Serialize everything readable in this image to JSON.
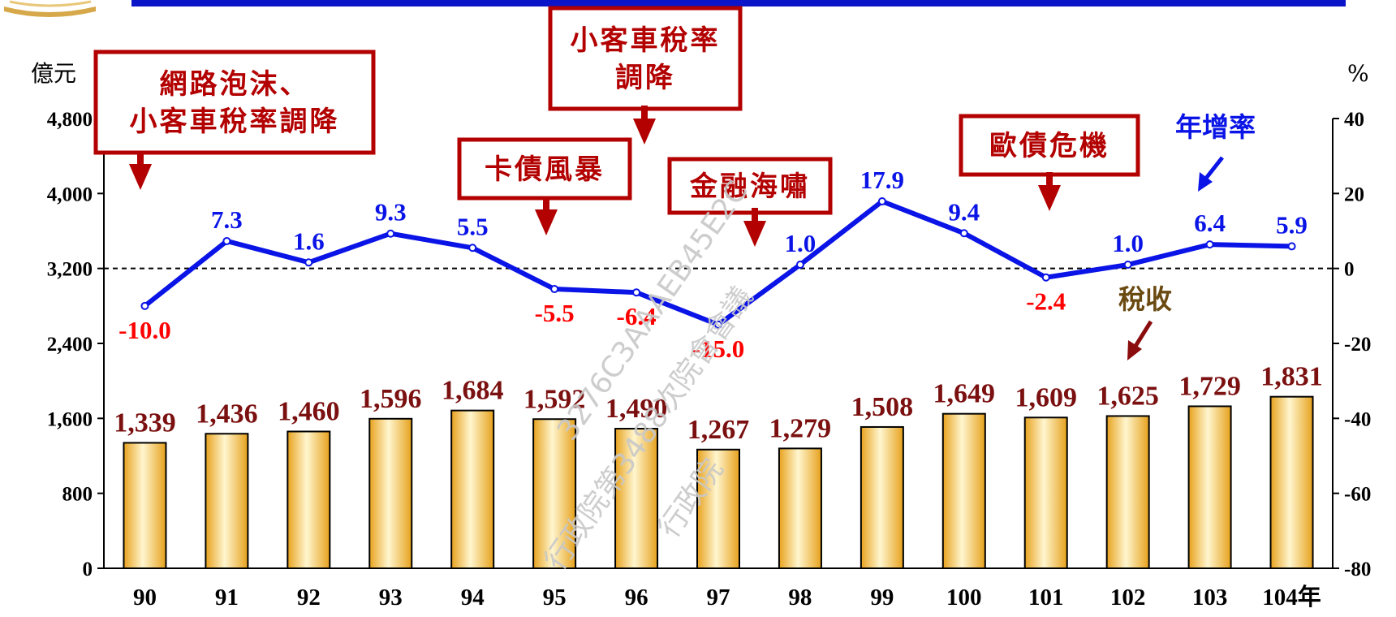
{
  "chart_data": {
    "type": "bar+line",
    "categories": [
      "90",
      "91",
      "92",
      "93",
      "94",
      "95",
      "96",
      "97",
      "98",
      "99",
      "100",
      "101",
      "102",
      "103",
      "104"
    ],
    "x_suffix": "年",
    "bars": {
      "name": "稅收",
      "values": [
        1339,
        1436,
        1460,
        1596,
        1684,
        1592,
        1490,
        1267,
        1279,
        1508,
        1649,
        1609,
        1625,
        1729,
        1831
      ],
      "labels": [
        "1,339",
        "1,436",
        "1,460",
        "1,596",
        "1,684",
        "1,592",
        "1,490",
        "1,267",
        "1,279",
        "1,508",
        "1,649",
        "1,609",
        "1,625",
        "1,729",
        "1,831"
      ],
      "color": "#f2b431"
    },
    "line": {
      "name": "年增率",
      "values": [
        -10.0,
        7.3,
        1.6,
        9.3,
        5.5,
        -5.5,
        -6.4,
        -15.0,
        1.0,
        17.9,
        9.4,
        -2.4,
        1.0,
        6.4,
        5.9
      ],
      "labels": [
        "-10.0",
        "7.3",
        "1.6",
        "9.3",
        "5.5",
        "-5.5",
        "-6.4",
        "-15.0",
        "1.0",
        "17.9",
        "9.4",
        "-2.4",
        "1.0",
        "6.4",
        "5.9"
      ],
      "color": "#0a14e6",
      "negative_color": "#ff0000"
    },
    "left_axis": {
      "unit": "億元",
      "ylim": [
        0,
        4800
      ],
      "ticks": [
        "0",
        "800",
        "1,600",
        "2,400",
        "3,200",
        "4,000",
        "4,800"
      ],
      "tick_values": [
        0,
        800,
        1600,
        2400,
        3200,
        4000,
        4800
      ]
    },
    "right_axis": {
      "unit": "%",
      "ylim": [
        -80,
        40
      ],
      "ticks": [
        "-80",
        "-60",
        "-40",
        "-20",
        "0",
        "20",
        "40"
      ],
      "tick_values": [
        -80,
        -60,
        -40,
        -20,
        0,
        20,
        40
      ]
    },
    "zero_reference_line": "dashed",
    "annotations": [
      {
        "lines": [
          "網路泡沫、",
          "小客車稅率調降"
        ],
        "index": 0
      },
      {
        "lines": [
          "小客車稅率",
          "調降"
        ],
        "index": 6
      },
      {
        "lines": [
          "卡債風暴"
        ],
        "index": 5
      },
      {
        "lines": [
          "金融海嘯"
        ],
        "index": 7
      },
      {
        "lines": [
          "歐債危機"
        ],
        "index": 11
      }
    ]
  },
  "watermark": {
    "line1": "3276C3AAAEB45E2C",
    "line2": "行政院第3488次院會會議",
    "line3": "行政院"
  },
  "colors": {
    "header_bar": "#0a14c8",
    "annotation": "#b30000",
    "bar_label": "#7b1010"
  }
}
